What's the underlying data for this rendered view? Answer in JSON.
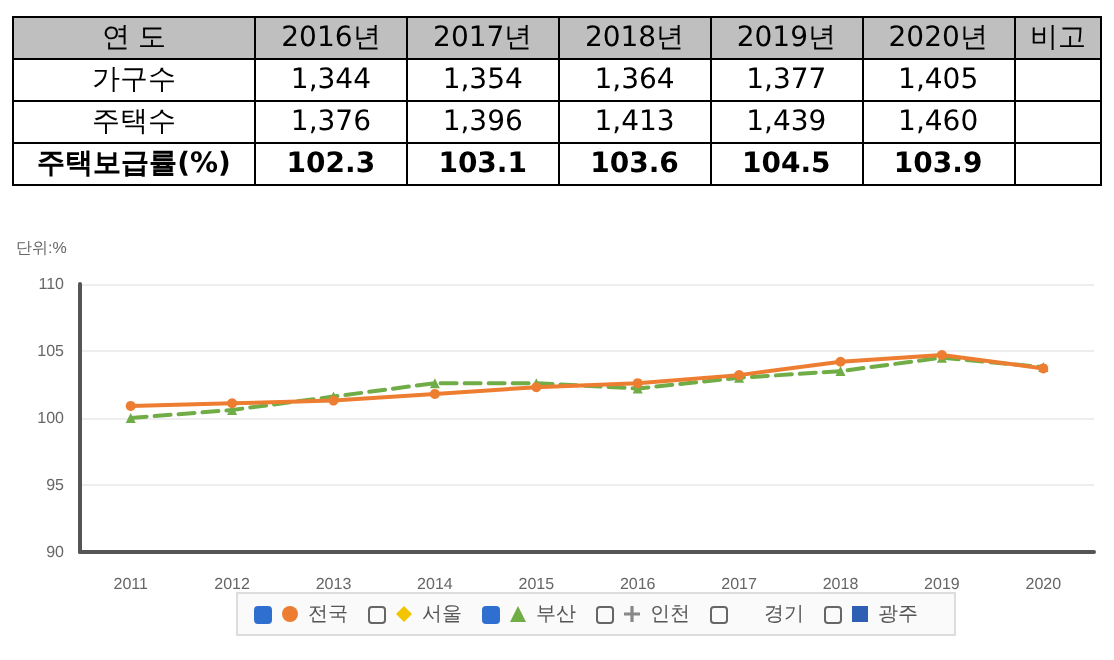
{
  "chart_data": [
    {
      "type": "heatmap",
      "xlabel": "연 도",
      "categories": [
        "2016년",
        "2017년",
        "2018년",
        "2019년",
        "2020년",
        "비고"
      ],
      "y_categories": [
        "가구수",
        "주택수",
        "주택보급률(%)"
      ],
      "cells": [
        [
          1344,
          1354,
          1364,
          1377,
          1405,
          null
        ],
        [
          1376,
          1396,
          1413,
          1439,
          1460,
          null
        ],
        [
          102.3,
          103.1,
          103.6,
          104.5,
          103.9,
          null
        ]
      ],
      "cell_labels": [
        [
          "1,344",
          "1,354",
          "1,364",
          "1,377",
          "1,405",
          null
        ],
        [
          "1,376",
          "1,396",
          "1,413",
          "1,439",
          "1,460",
          null
        ],
        [
          "102.3",
          "103.1",
          "103.6",
          "104.5",
          "103.9",
          null
        ]
      ]
    },
    {
      "type": "line",
      "ylabel": "단위:%",
      "categories": [
        "2011",
        "2012",
        "2013",
        "2014",
        "2015",
        "2016",
        "2017",
        "2018",
        "2019",
        "2020"
      ],
      "ylim": [
        90,
        110
      ],
      "yticks": [
        90,
        95,
        100,
        105,
        110
      ],
      "grid": "y",
      "legend": "bottom",
      "series": [
        {
          "name": "전국",
          "color": "#ed7d31",
          "marker": "circle",
          "line_style": "solid",
          "values": [
            100.9,
            101.1,
            101.3,
            101.8,
            102.3,
            102.6,
            103.2,
            104.2,
            104.7,
            103.7
          ]
        },
        {
          "name": "서울",
          "color": "#f2c500",
          "marker": "diamond",
          "values": [
            null,
            null,
            null,
            null,
            null,
            null,
            null,
            null,
            null,
            null
          ]
        },
        {
          "name": "부산",
          "color": "#70ad47",
          "marker": "triangle",
          "line_style": "dashed",
          "values": [
            100.0,
            100.6,
            101.6,
            102.6,
            102.6,
            102.2,
            103.0,
            103.5,
            104.5,
            103.8
          ]
        },
        {
          "name": "인천",
          "color": "#888888",
          "marker": "cross",
          "values": [
            null,
            null,
            null,
            null,
            null,
            null,
            null,
            null,
            null,
            null
          ]
        },
        {
          "name": "경기",
          "marker": "none",
          "values": [
            null,
            null,
            null,
            null,
            null,
            null,
            null,
            null,
            null,
            null
          ]
        },
        {
          "name": "광주",
          "color": "#2f5fb3",
          "marker": "square",
          "values": [
            null,
            null,
            null,
            null,
            null,
            null,
            null,
            null,
            null,
            null
          ]
        }
      ]
    }
  ]
}
